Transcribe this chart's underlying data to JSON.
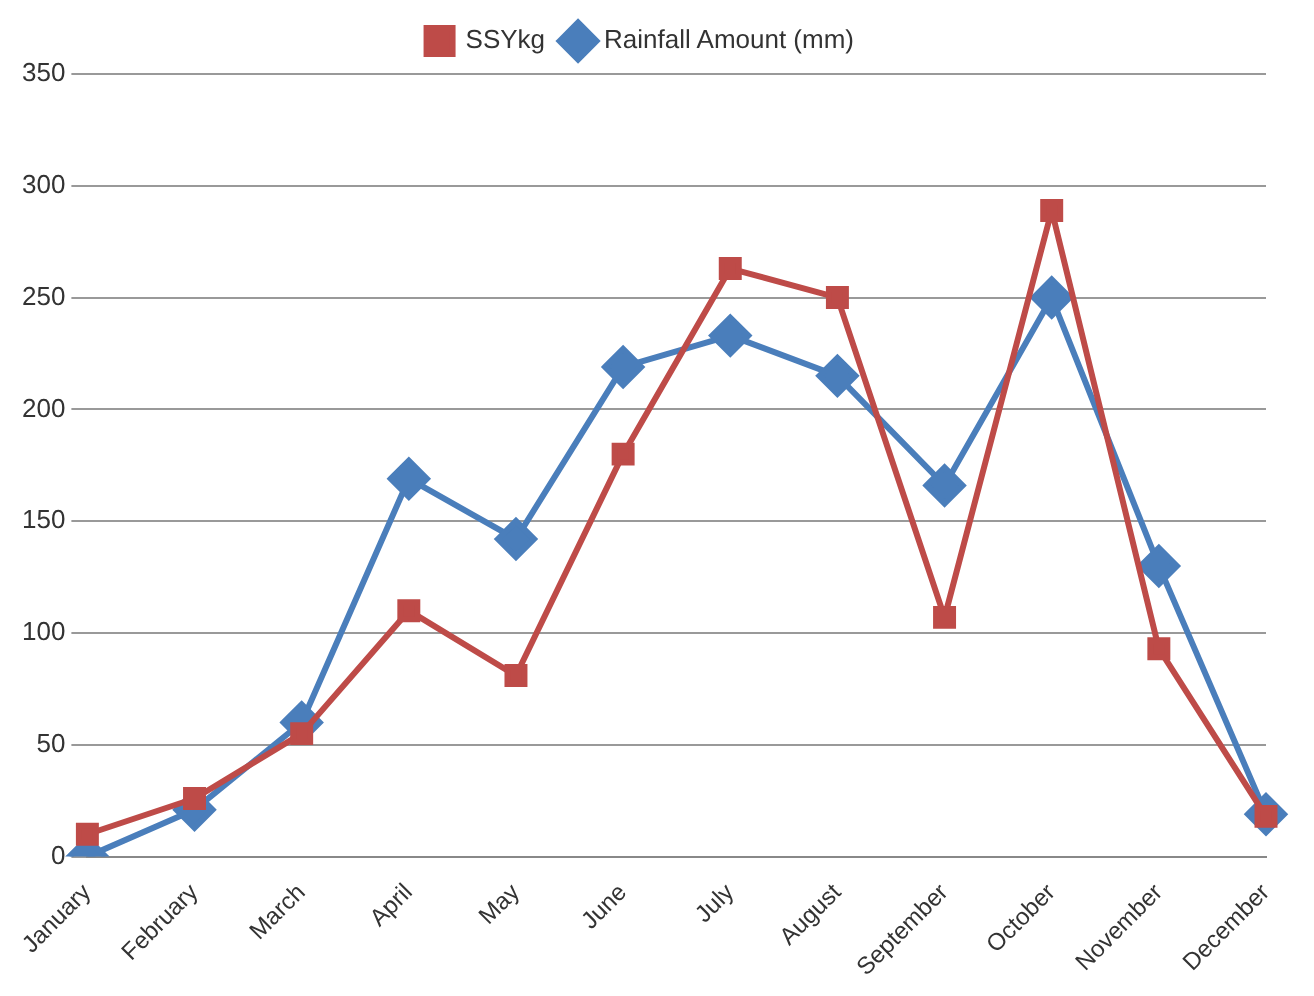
{
  "chart_data": {
    "type": "line",
    "categories": [
      "January",
      "February",
      "March",
      "April",
      "May",
      "June",
      "July",
      "August",
      "September",
      "October",
      "November",
      "December"
    ],
    "series": [
      {
        "name": "SSYkg",
        "color": "#be4b48",
        "marker": "square",
        "values": [
          10,
          26,
          55,
          110,
          81,
          180,
          263,
          250,
          107,
          289,
          93,
          18
        ]
      },
      {
        "name": "Rainfall Amount (mm)",
        "color": "#4a7ebb",
        "marker": "diamond",
        "values": [
          0,
          21,
          60,
          169,
          142,
          219,
          233,
          215,
          166,
          250,
          130,
          19
        ]
      }
    ],
    "ylim": [
      0,
      350
    ],
    "yticks": [
      0,
      50,
      100,
      150,
      200,
      250,
      300,
      350
    ],
    "grid": "y",
    "legend": "top",
    "line_style": "solid"
  }
}
